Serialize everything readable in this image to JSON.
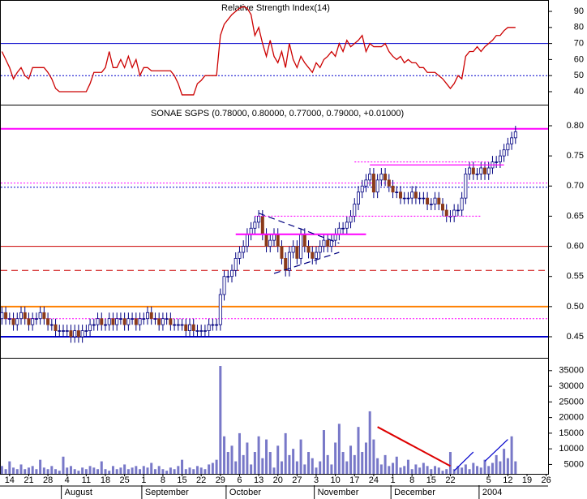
{
  "chart_data": [
    {
      "type": "line",
      "title": "Relative Strength Index(14)",
      "color": "#cc0000",
      "values": [
        65,
        60,
        55,
        48,
        52,
        55,
        50,
        48,
        55,
        55,
        55,
        55,
        52,
        48,
        42,
        40,
        40,
        40,
        40,
        40,
        40,
        40,
        40,
        45,
        52,
        52,
        52,
        55,
        65,
        55,
        55,
        60,
        55,
        62,
        55,
        60,
        50,
        55,
        55,
        53,
        53,
        53,
        53,
        53,
        53,
        50,
        45,
        38,
        38,
        38,
        38,
        45,
        47,
        50,
        50,
        50,
        50,
        75,
        82,
        85,
        88,
        90,
        92,
        93,
        92,
        88,
        75,
        80,
        70,
        62,
        72,
        62,
        58,
        65,
        55,
        70,
        60,
        55,
        62,
        58,
        55,
        52,
        58,
        55,
        60,
        62,
        65,
        62,
        70,
        65,
        72,
        68,
        70,
        72,
        75,
        65,
        70,
        68,
        68,
        68,
        70,
        65,
        62,
        60,
        62,
        58,
        60,
        58,
        58,
        55,
        55,
        52,
        52,
        52,
        50,
        48,
        45,
        42,
        45,
        50,
        48,
        62,
        65,
        65,
        68,
        65,
        68,
        70,
        72,
        75,
        75,
        78,
        80,
        80,
        80,
        null,
        null,
        null,
        null,
        null,
        null,
        null,
        null
      ],
      "ylim": [
        31.9,
        97.1
      ],
      "yticks": [
        40,
        50,
        60,
        70,
        80,
        90
      ],
      "levels": [
        {
          "value": 70,
          "color": "#0000cc",
          "style": "solid"
        },
        {
          "value": 50,
          "color": "#0000cc",
          "style": "dotted"
        }
      ]
    },
    {
      "type": "candlestick",
      "title": "SONAE SGPS (0.78000, 0.80000, 0.77000, 0.79000, +0.01000)",
      "categories": [
        null,
        null,
        "14",
        null,
        null,
        null,
        null,
        "21",
        null,
        null,
        null,
        null,
        "28",
        null,
        null,
        null,
        null,
        "4",
        null,
        null,
        null,
        null,
        "11",
        null,
        null,
        null,
        null,
        "18",
        null,
        null,
        null,
        null,
        "25",
        null,
        null,
        null,
        null,
        "1",
        null,
        null,
        null,
        null,
        "8",
        null,
        null,
        null,
        null,
        "15",
        null,
        null,
        null,
        null,
        "22",
        null,
        null,
        null,
        null,
        "29",
        null,
        null,
        null,
        null,
        "6",
        null,
        null,
        null,
        null,
        "13",
        null,
        null,
        null,
        null,
        "20",
        null,
        null,
        null,
        null,
        "27",
        null,
        null,
        null,
        null,
        "3",
        null,
        null,
        null,
        null,
        "10",
        null,
        null,
        null,
        null,
        "17",
        null,
        null,
        null,
        null,
        "24",
        null,
        null,
        null,
        null,
        "1",
        null,
        null,
        null,
        null,
        "8",
        null,
        null,
        null,
        null,
        "15",
        null,
        null,
        null,
        null,
        "22",
        null,
        null,
        null,
        null,
        null,
        null,
        null,
        null,
        null,
        "5",
        null,
        null,
        null,
        null,
        "12",
        null,
        null,
        null,
        null,
        "19",
        null,
        null,
        null,
        null,
        "26"
      ],
      "month_ticks": [
        {
          "value": 16,
          "label": "August"
        },
        {
          "value": 37,
          "label": "September"
        },
        {
          "value": 59,
          "label": "October"
        },
        {
          "value": 82,
          "label": "November"
        },
        {
          "value": 102,
          "label": "December"
        },
        {
          "value": 125,
          "label": "2004"
        }
      ],
      "open": [
        0.48,
        0.49,
        0.48,
        0.48,
        0.47,
        0.48,
        0.49,
        0.48,
        0.47,
        0.48,
        0.48,
        0.49,
        0.48,
        0.47,
        0.47,
        0.46,
        0.46,
        0.46,
        0.46,
        0.45,
        0.46,
        0.45,
        0.46,
        0.46,
        0.47,
        0.47,
        0.48,
        0.47,
        0.47,
        0.48,
        0.47,
        0.48,
        0.48,
        0.47,
        0.48,
        0.48,
        0.47,
        0.48,
        0.48,
        0.49,
        0.48,
        0.48,
        0.47,
        0.48,
        0.48,
        0.47,
        0.47,
        0.47,
        0.47,
        0.46,
        0.47,
        0.46,
        0.46,
        0.46,
        0.46,
        0.47,
        0.47,
        0.47,
        0.52,
        0.55,
        0.55,
        0.56,
        0.58,
        0.59,
        0.6,
        0.62,
        0.63,
        0.64,
        0.65,
        0.62,
        0.6,
        0.61,
        0.62,
        0.6,
        0.58,
        0.56,
        0.59,
        0.6,
        0.58,
        0.62,
        0.6,
        0.59,
        0.58,
        0.59,
        0.6,
        0.61,
        0.6,
        0.61,
        0.62,
        0.63,
        0.63,
        0.64,
        0.65,
        0.67,
        0.69,
        0.7,
        0.71,
        0.72,
        0.69,
        0.71,
        0.72,
        0.71,
        0.7,
        0.69,
        0.69,
        0.68,
        0.68,
        0.68,
        0.69,
        0.68,
        0.68,
        0.68,
        0.67,
        0.67,
        0.68,
        0.67,
        0.66,
        0.65,
        0.65,
        0.66,
        0.66,
        0.68,
        0.72,
        0.73,
        0.72,
        0.72,
        0.73,
        0.72,
        0.73,
        0.74,
        0.74,
        0.75,
        0.76,
        0.77,
        0.78,
        null,
        null,
        null,
        null,
        null,
        null,
        null,
        null
      ],
      "high": [
        0.5,
        0.5,
        0.49,
        0.49,
        0.49,
        0.5,
        0.5,
        0.49,
        0.49,
        0.49,
        0.5,
        0.5,
        0.49,
        0.48,
        0.48,
        0.47,
        0.47,
        0.47,
        0.47,
        0.47,
        0.47,
        0.47,
        0.47,
        0.48,
        0.48,
        0.49,
        0.49,
        0.48,
        0.49,
        0.49,
        0.49,
        0.49,
        0.49,
        0.49,
        0.49,
        0.49,
        0.49,
        0.49,
        0.5,
        0.5,
        0.49,
        0.49,
        0.49,
        0.49,
        0.49,
        0.48,
        0.48,
        0.48,
        0.48,
        0.48,
        0.48,
        0.47,
        0.47,
        0.47,
        0.48,
        0.48,
        0.48,
        0.53,
        0.56,
        0.56,
        0.57,
        0.59,
        0.6,
        0.61,
        0.63,
        0.64,
        0.65,
        0.66,
        0.66,
        0.63,
        0.62,
        0.63,
        0.63,
        0.61,
        0.59,
        0.6,
        0.61,
        0.61,
        0.63,
        0.63,
        0.61,
        0.6,
        0.6,
        0.61,
        0.62,
        0.62,
        0.62,
        0.63,
        0.64,
        0.64,
        0.65,
        0.66,
        0.68,
        0.7,
        0.71,
        0.72,
        0.73,
        0.73,
        0.72,
        0.73,
        0.73,
        0.72,
        0.71,
        0.7,
        0.7,
        0.69,
        0.69,
        0.7,
        0.7,
        0.69,
        0.69,
        0.69,
        0.68,
        0.69,
        0.69,
        0.68,
        0.67,
        0.66,
        0.67,
        0.67,
        0.69,
        0.73,
        0.74,
        0.74,
        0.73,
        0.74,
        0.74,
        0.74,
        0.75,
        0.75,
        0.76,
        0.77,
        0.78,
        0.79,
        0.8,
        null,
        null,
        null,
        null,
        null,
        null,
        null,
        null
      ],
      "low": [
        0.47,
        0.47,
        0.47,
        0.46,
        0.46,
        0.47,
        0.47,
        0.46,
        0.46,
        0.47,
        0.47,
        0.47,
        0.46,
        0.46,
        0.45,
        0.45,
        0.45,
        0.45,
        0.44,
        0.44,
        0.44,
        0.44,
        0.45,
        0.45,
        0.46,
        0.46,
        0.46,
        0.46,
        0.46,
        0.46,
        0.46,
        0.47,
        0.46,
        0.46,
        0.47,
        0.46,
        0.46,
        0.47,
        0.47,
        0.47,
        0.47,
        0.46,
        0.46,
        0.47,
        0.46,
        0.46,
        0.46,
        0.46,
        0.45,
        0.45,
        0.45,
        0.45,
        0.45,
        0.45,
        0.45,
        0.46,
        0.46,
        0.46,
        0.51,
        0.54,
        0.54,
        0.55,
        0.57,
        0.58,
        0.59,
        0.61,
        0.62,
        0.63,
        0.61,
        0.59,
        0.59,
        0.6,
        0.59,
        0.57,
        0.55,
        0.55,
        0.58,
        0.57,
        0.57,
        0.59,
        0.58,
        0.57,
        0.57,
        0.58,
        0.59,
        0.59,
        0.59,
        0.6,
        0.61,
        0.62,
        0.62,
        0.63,
        0.64,
        0.66,
        0.68,
        0.69,
        0.7,
        0.68,
        0.68,
        0.7,
        0.7,
        0.69,
        0.68,
        0.68,
        0.67,
        0.67,
        0.67,
        0.67,
        0.67,
        0.67,
        0.67,
        0.66,
        0.66,
        0.66,
        0.66,
        0.65,
        0.64,
        0.64,
        0.64,
        0.65,
        0.65,
        0.67,
        0.71,
        0.71,
        0.71,
        0.71,
        0.71,
        0.71,
        0.72,
        0.73,
        0.73,
        0.74,
        0.75,
        0.76,
        0.77,
        null,
        null,
        null,
        null,
        null,
        null,
        null,
        null
      ],
      "close": [
        0.49,
        0.48,
        0.48,
        0.47,
        0.48,
        0.49,
        0.48,
        0.47,
        0.48,
        0.48,
        0.49,
        0.48,
        0.47,
        0.47,
        0.46,
        0.46,
        0.46,
        0.46,
        0.45,
        0.46,
        0.45,
        0.46,
        0.46,
        0.47,
        0.47,
        0.48,
        0.47,
        0.47,
        0.48,
        0.47,
        0.48,
        0.48,
        0.47,
        0.48,
        0.48,
        0.47,
        0.48,
        0.48,
        0.49,
        0.48,
        0.48,
        0.47,
        0.48,
        0.48,
        0.47,
        0.47,
        0.47,
        0.47,
        0.46,
        0.47,
        0.46,
        0.46,
        0.46,
        0.46,
        0.47,
        0.47,
        0.47,
        0.52,
        0.55,
        0.55,
        0.56,
        0.58,
        0.59,
        0.6,
        0.62,
        0.63,
        0.64,
        0.65,
        0.62,
        0.6,
        0.61,
        0.62,
        0.6,
        0.58,
        0.56,
        0.59,
        0.6,
        0.58,
        0.62,
        0.6,
        0.59,
        0.58,
        0.59,
        0.6,
        0.61,
        0.6,
        0.61,
        0.62,
        0.63,
        0.63,
        0.64,
        0.65,
        0.67,
        0.69,
        0.7,
        0.71,
        0.72,
        0.69,
        0.71,
        0.72,
        0.71,
        0.7,
        0.69,
        0.69,
        0.68,
        0.68,
        0.68,
        0.69,
        0.68,
        0.68,
        0.68,
        0.67,
        0.67,
        0.68,
        0.67,
        0.66,
        0.65,
        0.65,
        0.66,
        0.66,
        0.68,
        0.72,
        0.73,
        0.72,
        0.72,
        0.73,
        0.72,
        0.73,
        0.74,
        0.74,
        0.75,
        0.76,
        0.77,
        0.78,
        0.79,
        null,
        null,
        null,
        null,
        null,
        null,
        null,
        null
      ],
      "up_color": "#ffffff",
      "down_color": "#8b3a1a",
      "outline_color": "#000080",
      "ylim": [
        0.415,
        0.835
      ],
      "yticks": [
        0.45,
        {
          "value": 0.5,
          "label": "0.50"
        },
        0.55,
        {
          "value": 0.6,
          "label": "0.60"
        },
        0.65,
        {
          "value": 0.7,
          "label": "0.70"
        },
        0.75,
        {
          "value": 0.8,
          "label": "0.80"
        }
      ],
      "levels": [
        {
          "value": 0.795,
          "color": "#ff00ff",
          "style": "thick"
        },
        {
          "value": 0.705,
          "color": "#ff00ff",
          "style": "dotted"
        },
        {
          "value": 0.698,
          "color": "#0000cc",
          "style": "dotted"
        },
        {
          "value": 0.6,
          "color": "#cc0000",
          "style": "solid"
        },
        {
          "value": 0.56,
          "color": "#cc0000",
          "style": "dashed"
        },
        {
          "value": 0.5,
          "color": "#ff8000",
          "style": "thick"
        },
        {
          "value": 0.48,
          "color": "#ff00ff",
          "style": "dotted"
        },
        {
          "value": 0.45,
          "color": "#0000cc",
          "style": "thick"
        }
      ],
      "trendlines": [
        {
          "x1": 61,
          "y1": 0.62,
          "x2": 95,
          "y2": 0.62,
          "color": "#ff00ff",
          "style": "thick"
        },
        {
          "x1": 66,
          "y1": 0.65,
          "x2": 125,
          "y2": 0.65,
          "color": "#ff00ff",
          "style": "dotted"
        },
        {
          "x1": 92,
          "y1": 0.74,
          "x2": 127,
          "y2": 0.74,
          "color": "#ff00ff",
          "style": "dotted"
        },
        {
          "x1": 96,
          "y1": 0.735,
          "x2": 131,
          "y2": 0.735,
          "color": "#ff00ff",
          "style": "solid"
        },
        {
          "x1": 67,
          "y1": 0.655,
          "x2": 88,
          "y2": 0.605,
          "color": "#000080",
          "style": "dashed"
        },
        {
          "x1": 71,
          "y1": 0.555,
          "x2": 88,
          "y2": 0.59,
          "color": "#000080",
          "style": "dashed"
        }
      ]
    },
    {
      "type": "bar",
      "color": "#7878c8",
      "values": [
        4500,
        3500,
        6000,
        4000,
        3500,
        5000,
        3500,
        4000,
        4500,
        3500,
        6500,
        4000,
        3500,
        4500,
        3500,
        3000,
        7500,
        4000,
        4500,
        3500,
        3000,
        4000,
        3500,
        4500,
        4000,
        3500,
        6000,
        3500,
        3000,
        4500,
        3500,
        4000,
        5000,
        3500,
        4000,
        4500,
        3500,
        4500,
        4000,
        5500,
        3500,
        4500,
        3500,
        3000,
        4000,
        3500,
        4500,
        6500,
        3500,
        4000,
        3500,
        4500,
        4000,
        3500,
        5000,
        5500,
        6500,
        36500,
        14000,
        9000,
        11000,
        6000,
        15000,
        8000,
        12000,
        5000,
        9000,
        14000,
        7000,
        13000,
        9000,
        4000,
        11000,
        6000,
        15000,
        8000,
        10000,
        6000,
        13000,
        5000,
        9000,
        7000,
        4000,
        6000,
        16000,
        8000,
        5000,
        12000,
        18000,
        9000,
        6000,
        11000,
        8000,
        17000,
        9000,
        12000,
        22000,
        13000,
        7000,
        5000,
        8000,
        4500,
        5500,
        7500,
        4000,
        4500,
        6500,
        3500,
        5000,
        4000,
        5500,
        4500,
        3500,
        4500,
        4000,
        3000,
        3500,
        9000,
        3500,
        4500,
        4000,
        5000,
        3500,
        5500,
        4500,
        4000,
        6500,
        4500,
        5500,
        8000,
        6000,
        10000,
        7000,
        14000,
        6000,
        null,
        null,
        null,
        null,
        null,
        null,
        null,
        null
      ],
      "ylim": [
        2000,
        39100
      ],
      "yticks": [
        5000,
        10000,
        15000,
        20000,
        25000,
        30000,
        35000
      ],
      "trendlines": [
        {
          "x1": 98,
          "y1": 17000,
          "x2": 117,
          "y2": 4500,
          "color": "#dd0000",
          "style": "thick"
        },
        {
          "x1": 118,
          "y1": 3000,
          "x2": 123,
          "y2": 9000,
          "color": "#0000cc",
          "style": "solid"
        },
        {
          "x1": 126,
          "y1": 6000,
          "x2": 132,
          "y2": 13000,
          "color": "#0000cc",
          "style": "solid"
        }
      ]
    }
  ]
}
